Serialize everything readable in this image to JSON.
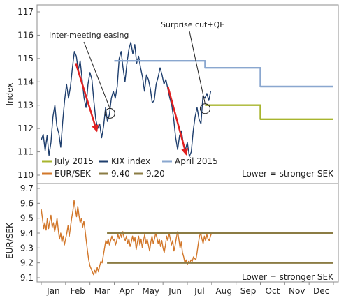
{
  "chart_data": [
    {
      "type": "line",
      "ylabel": "Index",
      "ylim": [
        110,
        117
      ],
      "yticks": [
        110,
        111,
        112,
        113,
        114,
        115,
        116,
        117
      ],
      "xlim": [
        0,
        12
      ],
      "grid": false,
      "legend_position": "bottom",
      "note": "Lower = stronger SEK",
      "annotations": [
        {
          "text": "Inter-meeting easing",
          "point": [
            2.82,
            112.65
          ],
          "marker": "circle"
        },
        {
          "text": "Surprise cut+QE",
          "point": [
            6.73,
            112.85
          ],
          "marker": "circle"
        }
      ],
      "arrows": [
        {
          "from": [
            1.42,
            114.8
          ],
          "to": [
            2.28,
            111.9
          ],
          "color": "#e02020"
        },
        {
          "from": [
            5.2,
            113.8
          ],
          "to": [
            5.95,
            110.9
          ],
          "color": "#e02020"
        }
      ],
      "series": [
        {
          "name": "July 2015",
          "color": "#a8b52e",
          "points": [
            [
              6.73,
              113.0
            ],
            [
              9.0,
              113.0
            ],
            [
              9.0,
              112.4
            ],
            [
              12.0,
              112.4
            ]
          ]
        },
        {
          "name": "KIX index",
          "color": "#1f3f6e",
          "points": [
            [
              0.0,
              111.5
            ],
            [
              0.08,
              111.75
            ],
            [
              0.16,
              111.05
            ],
            [
              0.24,
              111.7
            ],
            [
              0.32,
              110.85
            ],
            [
              0.4,
              111.4
            ],
            [
              0.48,
              112.5
            ],
            [
              0.56,
              113.0
            ],
            [
              0.64,
              112.1
            ],
            [
              0.72,
              111.8
            ],
            [
              0.8,
              111.2
            ],
            [
              0.88,
              112.3
            ],
            [
              0.96,
              113.2
            ],
            [
              1.04,
              113.9
            ],
            [
              1.12,
              113.3
            ],
            [
              1.2,
              113.8
            ],
            [
              1.28,
              114.6
            ],
            [
              1.36,
              115.3
            ],
            [
              1.44,
              115.1
            ],
            [
              1.52,
              114.5
            ],
            [
              1.6,
              114.9
            ],
            [
              1.68,
              114.1
            ],
            [
              1.76,
              113.3
            ],
            [
              1.84,
              112.9
            ],
            [
              1.92,
              113.9
            ],
            [
              2.0,
              114.4
            ],
            [
              2.08,
              114.1
            ],
            [
              2.16,
              113.2
            ],
            [
              2.24,
              112.4
            ],
            [
              2.32,
              112.0
            ],
            [
              2.4,
              112.2
            ],
            [
              2.48,
              111.6
            ],
            [
              2.56,
              112.1
            ],
            [
              2.64,
              112.9
            ],
            [
              2.72,
              112.3
            ],
            [
              2.8,
              112.6
            ],
            [
              2.88,
              113.3
            ],
            [
              2.96,
              113.6
            ],
            [
              3.04,
              113.3
            ],
            [
              3.12,
              113.8
            ],
            [
              3.2,
              115.0
            ],
            [
              3.28,
              115.3
            ],
            [
              3.36,
              114.6
            ],
            [
              3.44,
              114.0
            ],
            [
              3.52,
              114.8
            ],
            [
              3.6,
              115.4
            ],
            [
              3.68,
              115.7
            ],
            [
              3.76,
              115.2
            ],
            [
              3.84,
              115.6
            ],
            [
              3.92,
              114.8
            ],
            [
              4.0,
              115.1
            ],
            [
              4.08,
              114.6
            ],
            [
              4.16,
              114.2
            ],
            [
              4.24,
              113.6
            ],
            [
              4.32,
              114.3
            ],
            [
              4.4,
              114.1
            ],
            [
              4.48,
              113.7
            ],
            [
              4.56,
              113.1
            ],
            [
              4.64,
              113.2
            ],
            [
              4.72,
              113.9
            ],
            [
              4.8,
              114.2
            ],
            [
              4.88,
              114.6
            ],
            [
              4.96,
              114.3
            ],
            [
              5.04,
              113.9
            ],
            [
              5.12,
              114.1
            ],
            [
              5.2,
              113.7
            ],
            [
              5.28,
              113.3
            ],
            [
              5.36,
              113.0
            ],
            [
              5.44,
              112.4
            ],
            [
              5.52,
              111.6
            ],
            [
              5.6,
              111.1
            ],
            [
              5.68,
              111.7
            ],
            [
              5.76,
              111.9
            ],
            [
              5.84,
              111.3
            ],
            [
              5.92,
              111.1
            ],
            [
              6.0,
              111.4
            ],
            [
              6.08,
              110.8
            ],
            [
              6.16,
              111.0
            ],
            [
              6.24,
              111.9
            ],
            [
              6.32,
              112.5
            ],
            [
              6.4,
              112.9
            ],
            [
              6.48,
              112.4
            ],
            [
              6.56,
              112.2
            ],
            [
              6.64,
              113.4
            ],
            [
              6.72,
              113.3
            ],
            [
              6.8,
              113.5
            ],
            [
              6.88,
              113.2
            ],
            [
              6.96,
              113.6
            ]
          ]
        },
        {
          "name": "April 2015",
          "color": "#8aa7cf",
          "points": [
            [
              3.0,
              114.9
            ],
            [
              6.73,
              114.9
            ],
            [
              6.73,
              114.6
            ],
            [
              9.0,
              114.6
            ],
            [
              9.0,
              113.8
            ],
            [
              12.0,
              113.8
            ]
          ]
        }
      ]
    },
    {
      "type": "line",
      "ylabel": "EUR/SEK",
      "ylim": [
        9.1,
        9.7
      ],
      "yticks": [
        9.1,
        9.2,
        9.3,
        9.4,
        9.5,
        9.6,
        9.7
      ],
      "xlim": [
        0,
        12
      ],
      "categories": [
        "Jan",
        "Feb",
        "Mar",
        "Apr",
        "May",
        "Jun",
        "Jul",
        "Aug",
        "Sep",
        "Oct",
        "Nov",
        "Dec"
      ],
      "grid": false,
      "legend_position": "top",
      "note": "Lower = stronger SEK",
      "series": [
        {
          "name": "EUR/SEK",
          "color": "#d2772a",
          "points": [
            [
              0.0,
              9.56
            ],
            [
              0.05,
              9.5
            ],
            [
              0.1,
              9.43
            ],
            [
              0.15,
              9.47
            ],
            [
              0.2,
              9.42
            ],
            [
              0.25,
              9.5
            ],
            [
              0.3,
              9.43
            ],
            [
              0.35,
              9.48
            ],
            [
              0.4,
              9.52
            ],
            [
              0.45,
              9.44
            ],
            [
              0.5,
              9.47
            ],
            [
              0.55,
              9.41
            ],
            [
              0.6,
              9.45
            ],
            [
              0.65,
              9.5
            ],
            [
              0.7,
              9.42
            ],
            [
              0.75,
              9.36
            ],
            [
              0.8,
              9.4
            ],
            [
              0.85,
              9.34
            ],
            [
              0.9,
              9.38
            ],
            [
              0.95,
              9.32
            ],
            [
              1.0,
              9.36
            ],
            [
              1.05,
              9.4
            ],
            [
              1.1,
              9.45
            ],
            [
              1.15,
              9.38
            ],
            [
              1.2,
              9.44
            ],
            [
              1.25,
              9.5
            ],
            [
              1.3,
              9.55
            ],
            [
              1.35,
              9.62
            ],
            [
              1.4,
              9.56
            ],
            [
              1.45,
              9.51
            ],
            [
              1.5,
              9.58
            ],
            [
              1.55,
              9.52
            ],
            [
              1.6,
              9.47
            ],
            [
              1.65,
              9.5
            ],
            [
              1.7,
              9.44
            ],
            [
              1.75,
              9.48
            ],
            [
              1.8,
              9.42
            ],
            [
              1.85,
              9.35
            ],
            [
              1.9,
              9.28
            ],
            [
              1.95,
              9.22
            ],
            [
              2.0,
              9.18
            ],
            [
              2.05,
              9.16
            ],
            [
              2.1,
              9.14
            ],
            [
              2.15,
              9.12
            ],
            [
              2.2,
              9.15
            ],
            [
              2.25,
              9.13
            ],
            [
              2.3,
              9.17
            ],
            [
              2.35,
              9.14
            ],
            [
              2.4,
              9.18
            ],
            [
              2.45,
              9.21
            ],
            [
              2.5,
              9.2
            ],
            [
              2.55,
              9.25
            ],
            [
              2.6,
              9.3
            ],
            [
              2.65,
              9.35
            ],
            [
              2.7,
              9.33
            ],
            [
              2.75,
              9.36
            ],
            [
              2.8,
              9.32
            ],
            [
              2.85,
              9.35
            ],
            [
              2.9,
              9.38
            ],
            [
              2.95,
              9.35
            ],
            [
              3.0,
              9.36
            ],
            [
              3.05,
              9.32
            ],
            [
              3.1,
              9.35
            ],
            [
              3.15,
              9.39
            ],
            [
              3.2,
              9.36
            ],
            [
              3.25,
              9.4
            ],
            [
              3.3,
              9.37
            ],
            [
              3.35,
              9.41
            ],
            [
              3.4,
              9.37
            ],
            [
              3.45,
              9.35
            ],
            [
              3.5,
              9.38
            ],
            [
              3.55,
              9.33
            ],
            [
              3.6,
              9.36
            ],
            [
              3.65,
              9.31
            ],
            [
              3.7,
              9.34
            ],
            [
              3.75,
              9.38
            ],
            [
              3.8,
              9.34
            ],
            [
              3.85,
              9.37
            ],
            [
              3.9,
              9.29
            ],
            [
              3.95,
              9.34
            ],
            [
              4.0,
              9.38
            ],
            [
              4.05,
              9.32
            ],
            [
              4.1,
              9.36
            ],
            [
              4.15,
              9.3
            ],
            [
              4.2,
              9.35
            ],
            [
              4.25,
              9.39
            ],
            [
              4.3,
              9.33
            ],
            [
              4.35,
              9.36
            ],
            [
              4.4,
              9.32
            ],
            [
              4.45,
              9.28
            ],
            [
              4.5,
              9.34
            ],
            [
              4.55,
              9.38
            ],
            [
              4.6,
              9.33
            ],
            [
              4.65,
              9.36
            ],
            [
              4.7,
              9.4
            ],
            [
              4.75,
              9.37
            ],
            [
              4.8,
              9.33
            ],
            [
              4.85,
              9.36
            ],
            [
              4.9,
              9.31
            ],
            [
              4.95,
              9.35
            ],
            [
              5.0,
              9.3
            ],
            [
              5.05,
              9.27
            ],
            [
              5.1,
              9.32
            ],
            [
              5.15,
              9.38
            ],
            [
              5.2,
              9.35
            ],
            [
              5.25,
              9.4
            ],
            [
              5.3,
              9.36
            ],
            [
              5.35,
              9.32
            ],
            [
              5.4,
              9.35
            ],
            [
              5.45,
              9.28
            ],
            [
              5.5,
              9.32
            ],
            [
              5.55,
              9.37
            ],
            [
              5.6,
              9.41
            ],
            [
              5.65,
              9.36
            ],
            [
              5.7,
              9.3
            ],
            [
              5.75,
              9.34
            ],
            [
              5.8,
              9.27
            ],
            [
              5.85,
              9.24
            ],
            [
              5.9,
              9.2
            ],
            [
              5.95,
              9.22
            ],
            [
              6.0,
              9.19
            ],
            [
              6.05,
              9.21
            ],
            [
              6.1,
              9.2
            ],
            [
              6.15,
              9.22
            ],
            [
              6.2,
              9.21
            ],
            [
              6.25,
              9.24
            ],
            [
              6.3,
              9.23
            ],
            [
              6.35,
              9.22
            ],
            [
              6.4,
              9.27
            ],
            [
              6.45,
              9.33
            ],
            [
              6.5,
              9.38
            ],
            [
              6.55,
              9.4
            ],
            [
              6.6,
              9.36
            ],
            [
              6.65,
              9.33
            ],
            [
              6.7,
              9.38
            ],
            [
              6.75,
              9.35
            ],
            [
              6.8,
              9.39
            ],
            [
              6.85,
              9.36
            ],
            [
              6.9,
              9.35
            ],
            [
              6.95,
              9.38
            ],
            [
              7.0,
              9.4
            ]
          ]
        },
        {
          "name": "9.40",
          "color": "#8b7c44",
          "points": [
            [
              2.7,
              9.4
            ],
            [
              12.0,
              9.4
            ]
          ]
        },
        {
          "name": "9.20",
          "color": "#8b7c44",
          "points": [
            [
              2.7,
              9.2
            ],
            [
              12.0,
              9.2
            ]
          ]
        }
      ]
    }
  ]
}
